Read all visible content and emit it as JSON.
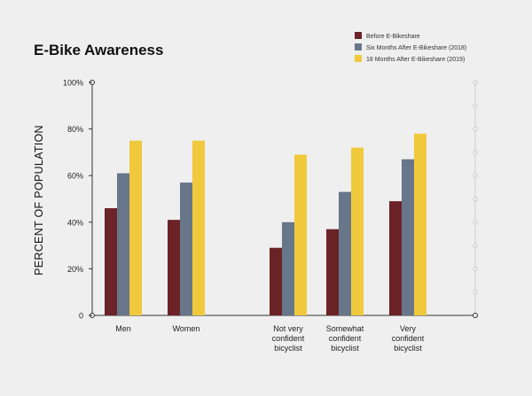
{
  "chart_data": {
    "type": "bar",
    "title": "E-Bike Awareness",
    "ylabel": "PERCENT OF POPULATION",
    "xlabel": "",
    "ylim": [
      0,
      100
    ],
    "yticks": [
      "0",
      "20%",
      "40%",
      "60%",
      "80%",
      "100%"
    ],
    "grid": false,
    "legend_position": "top-right",
    "categories": [
      [
        "Men"
      ],
      [
        "Women"
      ],
      [
        "Not very",
        "confident",
        "bicyclist"
      ],
      [
        "Somewhat",
        "confident",
        "bicyclist"
      ],
      [
        "Very",
        "confident",
        "bicyclist"
      ]
    ],
    "series": [
      {
        "name": "Before E-Bikeshare",
        "color": "#6b2328",
        "values": [
          46,
          41,
          29,
          37,
          49
        ]
      },
      {
        "name": "Six Months After E-Bikeshare (2018)",
        "color": "#68768a",
        "values": [
          61,
          57,
          40,
          53,
          67
        ]
      },
      {
        "name": "18 Months After E-Bikeshare (2019)",
        "color": "#f0c93c",
        "values": [
          75,
          75,
          69,
          72,
          78
        ]
      }
    ]
  }
}
